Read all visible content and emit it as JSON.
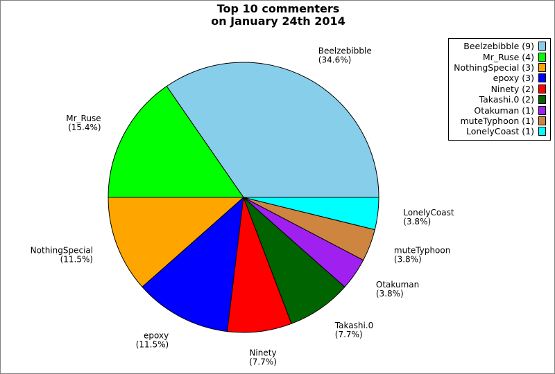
{
  "chart_data": {
    "type": "pie",
    "title": [
      "Top 10 commenters",
      "on January 24th 2014"
    ],
    "slices": [
      {
        "name": "Beelzebibble",
        "value": 9,
        "percent_label": "(34.6%)",
        "legend": "Beelzebibble (9)",
        "color": "#87ceeb"
      },
      {
        "name": "Mr_Ruse",
        "value": 4,
        "percent_label": "(15.4%)",
        "legend": "Mr_Ruse (4)",
        "color": "#00ff00"
      },
      {
        "name": "NothingSpecial",
        "value": 3,
        "percent_label": "(11.5%)",
        "legend": "NothingSpecial (3)",
        "color": "#ffa500"
      },
      {
        "name": "epoxy",
        "value": 3,
        "percent_label": "(11.5%)",
        "legend": "epoxy (3)",
        "color": "#0000ff"
      },
      {
        "name": "Ninety",
        "value": 2,
        "percent_label": "(7.7%)",
        "legend": "Ninety (2)",
        "color": "#ff0000"
      },
      {
        "name": "Takashi.0",
        "value": 2,
        "percent_label": "(7.7%)",
        "legend": "Takashi.0 (2)",
        "color": "#006400"
      },
      {
        "name": "Otakuman",
        "value": 1,
        "percent_label": "(3.8%)",
        "legend": "Otakuman (1)",
        "color": "#a020f0"
      },
      {
        "name": "muteTyphoon",
        "value": 1,
        "percent_label": "(3.8%)",
        "legend": "muteTyphoon (1)",
        "color": "#cd853f"
      },
      {
        "name": "LonelyCoast",
        "value": 1,
        "percent_label": "(3.8%)",
        "legend": "LonelyCoast (1)",
        "color": "#00ffff"
      }
    ],
    "start_angle_deg": 0,
    "direction": "counterclockwise",
    "legend_position": "top-right"
  }
}
